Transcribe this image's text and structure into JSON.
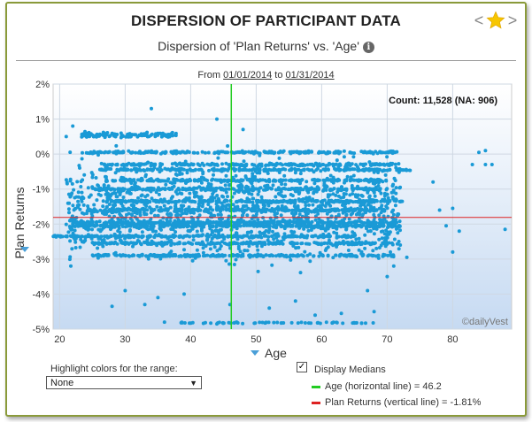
{
  "header": {
    "title": "DISPERSION OF PARTICIPANT DATA",
    "prev_glyph": "<",
    "next_glyph": ">",
    "favorite_icon": "star-icon",
    "subtitle": "Dispersion of 'Plan Returns' vs. 'Age'",
    "info_glyph": "i"
  },
  "date_range": {
    "prefix": "From",
    "start": "01/01/2014",
    "connector": "to",
    "end": "01/31/2014"
  },
  "chart_data": {
    "type": "scatter",
    "xlabel": "Age",
    "ylabel": "Plan Returns",
    "xlim": [
      19,
      89
    ],
    "ylim": [
      -5,
      2
    ],
    "x_ticks": [
      "20",
      "30",
      "40",
      "50",
      "60",
      "70",
      "80"
    ],
    "y_ticks": [
      "2%",
      "1%",
      "0%",
      "-1%",
      "-2%",
      "-3%",
      "-4%",
      "-5%"
    ],
    "grid": true,
    "count_label": "Count: 11,528 (NA: 906)",
    "watermark": "©dailyVest",
    "median_age": 46.2,
    "median_return": -1.81,
    "point_color": "#1a9ad6",
    "age_median_color": "#22cc22",
    "return_median_color": "#dd2222",
    "bands": [
      {
        "y": 0.05,
        "x0": 24,
        "x1": 72
      },
      {
        "y": -0.3,
        "x0": 26,
        "x1": 72
      },
      {
        "y": -0.45,
        "x0": 26,
        "x1": 74
      },
      {
        "y": -0.75,
        "x0": 27,
        "x1": 70
      },
      {
        "y": -1.0,
        "x0": 25,
        "x1": 70
      },
      {
        "y": -1.35,
        "x0": 27,
        "x1": 73
      },
      {
        "y": -1.6,
        "x0": 24,
        "x1": 70
      },
      {
        "y": -1.95,
        "x0": 22,
        "x1": 72
      },
      {
        "y": -2.05,
        "x0": 22,
        "x1": 72
      },
      {
        "y": -2.35,
        "x0": 19,
        "x1": 65
      },
      {
        "y": -2.55,
        "x0": 25,
        "x1": 71
      },
      {
        "y": -2.9,
        "x0": 25,
        "x1": 71
      }
    ],
    "outliers": [
      [
        34,
        1.3
      ],
      [
        44,
        1.0
      ],
      [
        21,
        0.5
      ],
      [
        22,
        0.8
      ],
      [
        48,
        0.7
      ],
      [
        24,
        0.6
      ],
      [
        84,
        0.05
      ],
      [
        85,
        0.1
      ],
      [
        83,
        -0.3
      ],
      [
        85,
        -0.3
      ],
      [
        86,
        -0.3
      ],
      [
        88,
        -2.15
      ],
      [
        81,
        -2.2
      ],
      [
        79,
        -2.05
      ],
      [
        80,
        -1.55
      ],
      [
        77,
        -0.8
      ],
      [
        78,
        -1.6
      ],
      [
        80,
        -2.8
      ],
      [
        72,
        -2.6
      ],
      [
        73,
        -2.95
      ],
      [
        70,
        -3.5
      ],
      [
        71,
        -3.2
      ],
      [
        28,
        -4.35
      ],
      [
        33,
        -4.3
      ],
      [
        36,
        -4.8
      ],
      [
        44,
        -4.85
      ],
      [
        46,
        -4.3
      ],
      [
        52,
        -4.4
      ],
      [
        56,
        -4.2
      ],
      [
        59,
        -4.6
      ],
      [
        63,
        -4.55
      ],
      [
        67,
        -3.9
      ],
      [
        68,
        -4.5
      ],
      [
        30,
        -3.9
      ],
      [
        35,
        -4.1
      ],
      [
        47,
        -4.8
      ],
      [
        39,
        -4.0
      ]
    ]
  },
  "highlight": {
    "label": "Highlight colors for the range:",
    "selected": "None",
    "arrow": "▼"
  },
  "medians": {
    "toggle_label": "Display Medians",
    "checked": true,
    "check_glyph": "✓",
    "age_legend": "Age (horizontal line) = 46.2",
    "returns_legend": "Plan Returns (vertical line) = -1.81%"
  }
}
